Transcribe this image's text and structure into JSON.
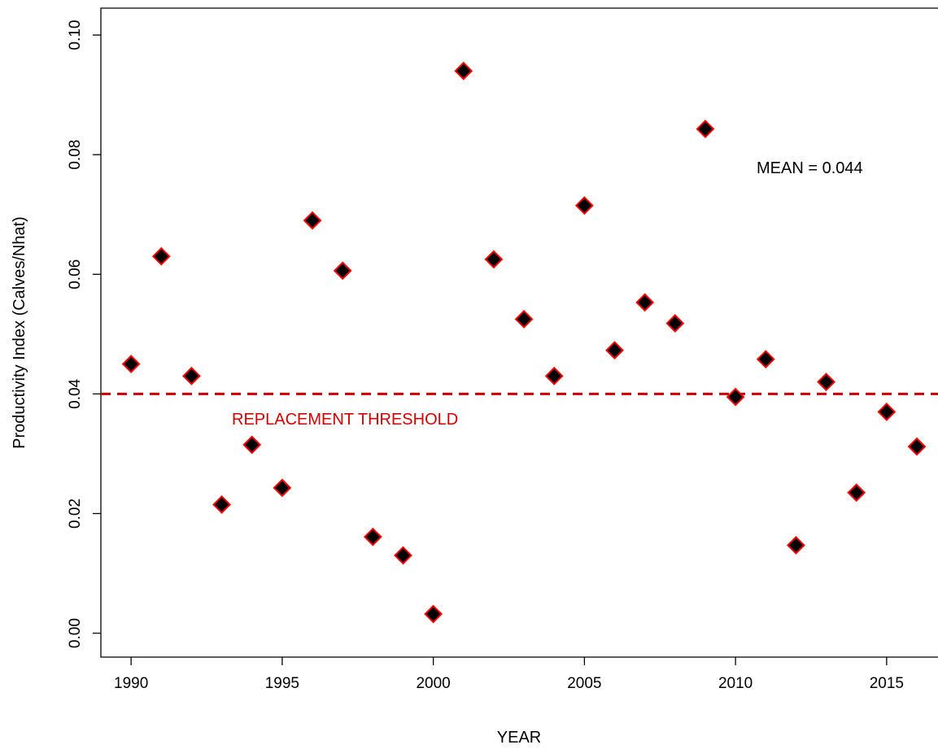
{
  "chart_data": {
    "type": "scatter",
    "xlabel": "YEAR",
    "ylabel": "Productivity Index (Calves/Nhat)",
    "xlim": [
      1989.0,
      2016.7
    ],
    "ylim": [
      -0.004,
      0.1045
    ],
    "x_ticks": [
      1990,
      1995,
      2000,
      2005,
      2010,
      2015
    ],
    "y_ticks": [
      0.0,
      0.02,
      0.04,
      0.06,
      0.08,
      0.1
    ],
    "y_tick_labels": [
      "0.00",
      "0.02",
      "0.04",
      "0.06",
      "0.08",
      "0.10"
    ],
    "marker": "diamond",
    "marker_fill": "#000000",
    "marker_edge": "#ff0000",
    "x": [
      1990,
      1991,
      1992,
      1993,
      1994,
      1995,
      1996,
      1997,
      1998,
      1999,
      2000,
      2001,
      2002,
      2003,
      2004,
      2005,
      2006,
      2007,
      2008,
      2009,
      2010,
      2011,
      2012,
      2013,
      2014,
      2015,
      2016
    ],
    "y": [
      0.045,
      0.063,
      0.043,
      0.0215,
      0.0315,
      0.0243,
      0.069,
      0.0606,
      0.0161,
      0.013,
      0.0032,
      0.094,
      0.0625,
      0.0525,
      0.043,
      0.0715,
      0.0473,
      0.0553,
      0.0518,
      0.0843,
      0.0395,
      0.0458,
      0.0147,
      0.042,
      0.0235,
      0.037,
      0.0312
    ],
    "threshold": {
      "value": 0.04,
      "label": "REPLACEMENT THRESHOLD",
      "color": "#d00000"
    },
    "annotation": "MEAN = 0.044",
    "grid": false
  }
}
